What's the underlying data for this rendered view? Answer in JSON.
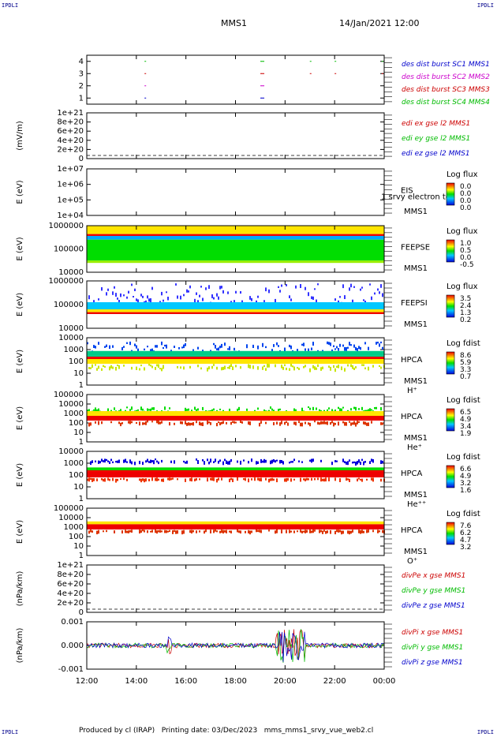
{
  "corners": {
    "tl": "IPDLI",
    "tr": "IPDLI",
    "bl": "IPDLI",
    "br": "IPDLI"
  },
  "header": {
    "spacecraft": "MMS1",
    "datetime": "14/Jan/2021 12:00"
  },
  "footer": "Produced by cl (IRAP)   Printing date: 03/Dec/2023   mms_mms1_srvy_vue_web2.cl",
  "chart_data": [
    {
      "type": "scatter",
      "id": "burst",
      "yticks": [
        "1",
        "2",
        "3",
        "4"
      ],
      "legend": [
        {
          "text": "des dist burst SC1 MMS1",
          "color": "#0000cc"
        },
        {
          "text": "des dist burst SC2 MMS2",
          "color": "#cc00cc"
        },
        {
          "text": "des dist burst SC3 MMS3",
          "color": "#cc0000"
        },
        {
          "text": "des dist burst SC4 MMS4",
          "color": "#00bb00"
        }
      ],
      "series": [
        {
          "y": 1,
          "x": [
            14.33,
            19.0,
            19.05,
            19.1
          ]
        },
        {
          "y": 2,
          "x": [
            14.33,
            19.0,
            19.05,
            19.1
          ]
        },
        {
          "y": 3,
          "x": [
            14.33,
            19.0,
            19.05,
            19.1,
            21.0,
            22.0,
            23.9
          ]
        },
        {
          "y": 4,
          "x": [
            14.33,
            19.0,
            19.05,
            19.1,
            21.0,
            22.0,
            23.9
          ]
        }
      ]
    },
    {
      "type": "line",
      "id": "edi",
      "ylabel": "(mV/m)",
      "yticks": [
        "0",
        "2e+20",
        "4e+20",
        "6e+20",
        "8e+20",
        "1e+21"
      ],
      "legend": [
        {
          "text": "edi ex gse l2 MMS1",
          "color": "#cc0000"
        },
        {
          "text": "edi ey gse l2 MMS1",
          "color": "#00bb00"
        },
        {
          "text": "edi ez gse l2 MMS1",
          "color": "#0000cc"
        }
      ]
    },
    {
      "type": "heatmap",
      "id": "eis",
      "ylabel": "E (eV)",
      "yticks": [
        "1e+04",
        "1e+05",
        "1e+06",
        "1e+07"
      ],
      "side_top": "EIS",
      "side_bottom": "MMS1",
      "overlay": "1 srvy electron to",
      "cb_title": "Log flux",
      "cb_values": [
        "0.0",
        "0.0",
        "0.0",
        "0.0"
      ]
    },
    {
      "type": "heatmap",
      "id": "feepse",
      "ylabel": "E (eV)",
      "yticks": [
        "10000",
        "100000",
        "1000000"
      ],
      "side_top": "FEEPSE",
      "side_bottom": "MMS1",
      "cb_title": "Log flux",
      "cb_values": [
        "1.0",
        "0.5",
        "0.0",
        "-0.5"
      ]
    },
    {
      "type": "heatmap",
      "id": "feepsi",
      "ylabel": "E (eV)",
      "yticks": [
        "10000",
        "100000",
        "1000000"
      ],
      "side_top": "FEEPSI",
      "side_bottom": "MMS1",
      "cb_title": "Log flux",
      "cb_values": [
        "3.5",
        "2.4",
        "1.3",
        "0.2"
      ]
    },
    {
      "type": "heatmap",
      "id": "hpca_h",
      "ylabel": "E (eV)",
      "yticks": [
        "1",
        "10",
        "100",
        "1000",
        "10000"
      ],
      "side_top": "HPCA",
      "side_bottom": "MMS1",
      "species": "H⁺",
      "cb_title": "Log fdist",
      "cb_values": [
        "8.6",
        "5.9",
        "3.3",
        "0.7"
      ]
    },
    {
      "type": "heatmap",
      "id": "hpca_he",
      "ylabel": "E (eV)",
      "yticks": [
        "1",
        "10",
        "100",
        "1000",
        "10000",
        "100000"
      ],
      "side_top": "HPCA",
      "side_bottom": "MMS1",
      "species": "He⁺",
      "cb_title": "Log fdist",
      "cb_values": [
        "6.5",
        "4.9",
        "3.4",
        "1.9"
      ]
    },
    {
      "type": "heatmap",
      "id": "hpca_hepp",
      "ylabel": "E (eV)",
      "yticks": [
        "1",
        "10",
        "100",
        "1000",
        "10000"
      ],
      "side_top": "HPCA",
      "side_bottom": "MMS1",
      "species": "He⁺⁺",
      "cb_title": "Log fdist",
      "cb_values": [
        "6.6",
        "4.9",
        "3.2",
        "1.6"
      ]
    },
    {
      "type": "heatmap",
      "id": "hpca_o",
      "ylabel": "E (eV)",
      "yticks": [
        "1",
        "10",
        "100",
        "1000",
        "10000",
        "100000"
      ],
      "side_top": "HPCA",
      "side_bottom": "MMS1",
      "species": "O⁺",
      "cb_title": "Log fdist",
      "cb_values": [
        "7.6",
        "6.2",
        "4.7",
        "3.2"
      ]
    },
    {
      "type": "line",
      "id": "divpe",
      "ylabel": "(nPa/km)",
      "yticks": [
        "0",
        "2e+20",
        "4e+20",
        "6e+20",
        "8e+20",
        "1e+21"
      ],
      "legend": [
        {
          "text": "divPe x gse MMS1",
          "color": "#cc0000"
        },
        {
          "text": "divPe y gse MMS1",
          "color": "#00bb00"
        },
        {
          "text": "divPe z gse MMS1",
          "color": "#0000cc"
        }
      ]
    },
    {
      "type": "line",
      "id": "divpi",
      "ylabel": "(nPa/km)",
      "yticks": [
        "-0.001",
        "0.000",
        "0.001"
      ],
      "legend": [
        {
          "text": "divPi x gse MMS1",
          "color": "#cc0000"
        },
        {
          "text": "divPi y gse MMS1",
          "color": "#00bb00"
        },
        {
          "text": "divPi z gse MMS1",
          "color": "#0000cc"
        }
      ]
    }
  ],
  "xaxis": {
    "ticks": [
      "12:00",
      "14:00",
      "16:00",
      "18:00",
      "20:00",
      "22:00",
      "00:00"
    ],
    "range": [
      12,
      24
    ]
  }
}
